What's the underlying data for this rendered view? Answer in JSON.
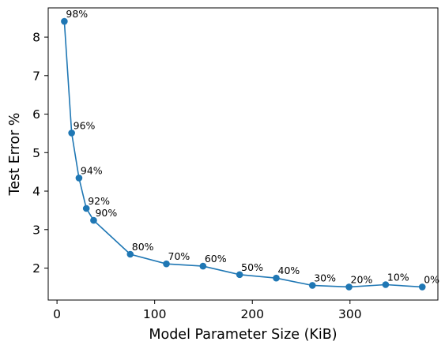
{
  "chart_data": {
    "type": "line",
    "xlabel": "Model Parameter Size (KiB)",
    "ylabel": "Test Error %",
    "xlim": [
      -9,
      390
    ],
    "ylim": [
      1.17,
      8.76
    ],
    "xticks": [
      0,
      100,
      200,
      300
    ],
    "yticks": [
      2,
      3,
      4,
      5,
      6,
      7,
      8
    ],
    "grid": false,
    "color": "#1f77b4",
    "series": [
      {
        "x": [
          7.5,
          15,
          22.5,
          30,
          37.5,
          75,
          112,
          149.5,
          187,
          224.5,
          261.5,
          299,
          336.5,
          374
        ],
        "y": [
          8.41,
          5.51,
          4.34,
          3.55,
          3.24,
          2.36,
          2.11,
          2.05,
          1.83,
          1.74,
          1.55,
          1.51,
          1.57,
          1.51
        ],
        "labels": [
          "98%",
          "96%",
          "94%",
          "92%",
          "90%",
          "80%",
          "70%",
          "60%",
          "50%",
          "40%",
          "30%",
          "20%",
          "10%",
          "0%"
        ]
      }
    ]
  }
}
